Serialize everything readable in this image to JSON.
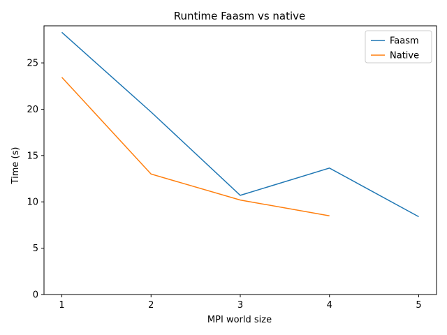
{
  "chart_data": {
    "type": "line",
    "title": "Runtime Faasm vs native",
    "xlabel": "MPI world size",
    "ylabel": "Time (s)",
    "xlim": [
      0.8,
      5.2
    ],
    "ylim": [
      0,
      29.0
    ],
    "xticks": [
      1,
      2,
      3,
      4,
      5
    ],
    "yticks": [
      0,
      5,
      10,
      15,
      20,
      25
    ],
    "grid": false,
    "legend_position": "top-right",
    "series": [
      {
        "name": "Faasm",
        "color": "#1f77b4",
        "x": [
          1,
          2,
          3,
          4,
          5
        ],
        "values": [
          28.3,
          19.7,
          10.7,
          13.65,
          8.4
        ]
      },
      {
        "name": "Native",
        "color": "#ff7f0e",
        "x": [
          1,
          2,
          3,
          4
        ],
        "values": [
          23.45,
          13.0,
          10.2,
          8.5
        ]
      }
    ]
  }
}
